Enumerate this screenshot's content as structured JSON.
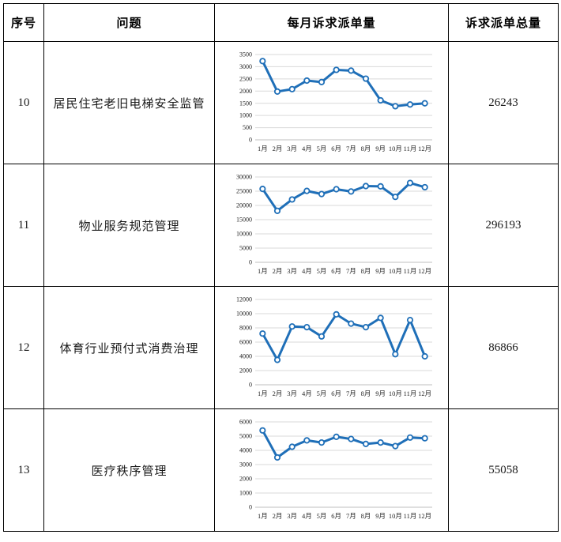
{
  "colors": {
    "line": "#1F6FB8",
    "marker_fill": "#ffffff",
    "grid": "#D9D9D9",
    "axis_line": "#BFBFBF",
    "axis_text": "#262626",
    "table_border": "#000000"
  },
  "table": {
    "headers": {
      "index": "序号",
      "issue": "问题",
      "monthly": "每月诉求派单量",
      "total": "诉求派单总量"
    },
    "rows": [
      {
        "index": "10",
        "issue": "居民住宅老旧电梯安全监管",
        "total": "26243"
      },
      {
        "index": "11",
        "issue": "物业服务规范管理",
        "total": "296193"
      },
      {
        "index": "12",
        "issue": "体育行业预付式消费治理",
        "total": "86866"
      },
      {
        "index": "13",
        "issue": "医疗秩序管理",
        "total": "55058"
      }
    ]
  },
  "chart_data": [
    {
      "type": "line",
      "row_index": "10",
      "row_label": "居民住宅老旧电梯安全监管",
      "title": "每月诉求派单量",
      "categories": [
        "1月",
        "2月",
        "3月",
        "4月",
        "5月",
        "6月",
        "7月",
        "8月",
        "9月",
        "10月",
        "11月",
        "12月"
      ],
      "values": [
        3230,
        1980,
        2080,
        2430,
        2370,
        2870,
        2840,
        2510,
        1620,
        1380,
        1450,
        1500
      ],
      "total": 26243,
      "xlabel": "",
      "ylabel": "",
      "ylim": [
        0,
        3500
      ],
      "ytick_step": 500,
      "grid": true,
      "legend": false
    },
    {
      "type": "line",
      "row_index": "11",
      "row_label": "物业服务规范管理",
      "title": "每月诉求派单量",
      "categories": [
        "1月",
        "2月",
        "3月",
        "4月",
        "5月",
        "6月",
        "7月",
        "8月",
        "9月",
        "10月",
        "11月",
        "12月"
      ],
      "values": [
        25800,
        18100,
        22100,
        25100,
        24000,
        25700,
        24900,
        26800,
        26700,
        23000,
        27900,
        26400
      ],
      "total": 296193,
      "xlabel": "",
      "ylabel": "",
      "ylim": [
        0,
        30000
      ],
      "ytick_step": 5000,
      "grid": true,
      "legend": false
    },
    {
      "type": "line",
      "row_index": "12",
      "row_label": "体育行业预付式消费治理",
      "title": "每月诉求派单量",
      "categories": [
        "1月",
        "2月",
        "3月",
        "4月",
        "5月",
        "6月",
        "7月",
        "8月",
        "9月",
        "10月",
        "11月",
        "12月"
      ],
      "values": [
        7200,
        3500,
        8200,
        8100,
        6800,
        9900,
        8600,
        8100,
        9400,
        4300,
        9100,
        4000
      ],
      "total": 86866,
      "xlabel": "",
      "ylabel": "",
      "ylim": [
        0,
        12000
      ],
      "ytick_step": 2000,
      "grid": true,
      "legend": false
    },
    {
      "type": "line",
      "row_index": "13",
      "row_label": "医疗秩序管理",
      "title": "每月诉求派单量",
      "categories": [
        "1月",
        "2月",
        "3月",
        "4月",
        "5月",
        "6月",
        "7月",
        "8月",
        "9月",
        "10月",
        "11月",
        "12月"
      ],
      "values": [
        5400,
        3500,
        4250,
        4700,
        4550,
        4950,
        4800,
        4450,
        4550,
        4300,
        4900,
        4850
      ],
      "total": 55058,
      "xlabel": "",
      "ylabel": "",
      "ylim": [
        0,
        6000
      ],
      "ytick_step": 1000,
      "grid": true,
      "legend": false
    }
  ]
}
